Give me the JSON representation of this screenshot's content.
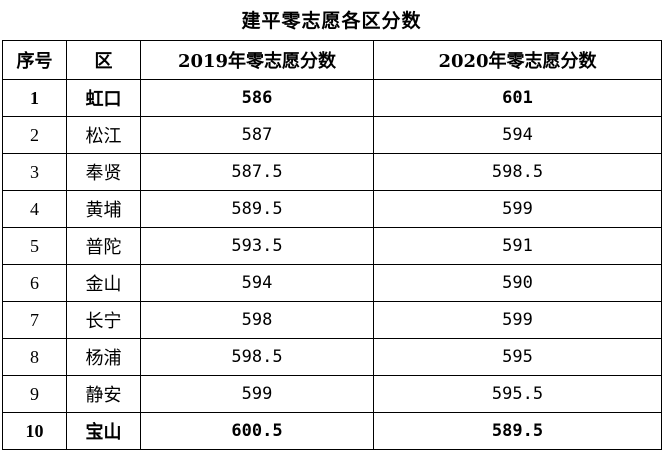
{
  "title": "建平零志愿各区分数",
  "headers": [
    "序号",
    "区",
    "2019年零志愿分数",
    "2020年零志愿分数"
  ],
  "rows": [
    {
      "index": "1",
      "district": "虹口",
      "score_2019": "586",
      "score_2020": "601",
      "bold": true
    },
    {
      "index": "2",
      "district": "松江",
      "score_2019": "587",
      "score_2020": "594",
      "bold": false
    },
    {
      "index": "3",
      "district": "奉贤",
      "score_2019": "587.5",
      "score_2020": "598.5",
      "bold": false
    },
    {
      "index": "4",
      "district": "黄埔",
      "score_2019": "589.5",
      "score_2020": "599",
      "bold": false
    },
    {
      "index": "5",
      "district": "普陀",
      "score_2019": "593.5",
      "score_2020": "591",
      "bold": false
    },
    {
      "index": "6",
      "district": "金山",
      "score_2019": "594",
      "score_2020": "590",
      "bold": false
    },
    {
      "index": "7",
      "district": "长宁",
      "score_2019": "598",
      "score_2020": "599",
      "bold": false
    },
    {
      "index": "8",
      "district": "杨浦",
      "score_2019": "598.5",
      "score_2020": "595",
      "bold": false
    },
    {
      "index": "9",
      "district": "静安",
      "score_2019": "599",
      "score_2020": "595.5",
      "bold": false
    },
    {
      "index": "10",
      "district": "宝山",
      "score_2019": "600.5",
      "score_2020": "589.5",
      "bold": true
    }
  ]
}
